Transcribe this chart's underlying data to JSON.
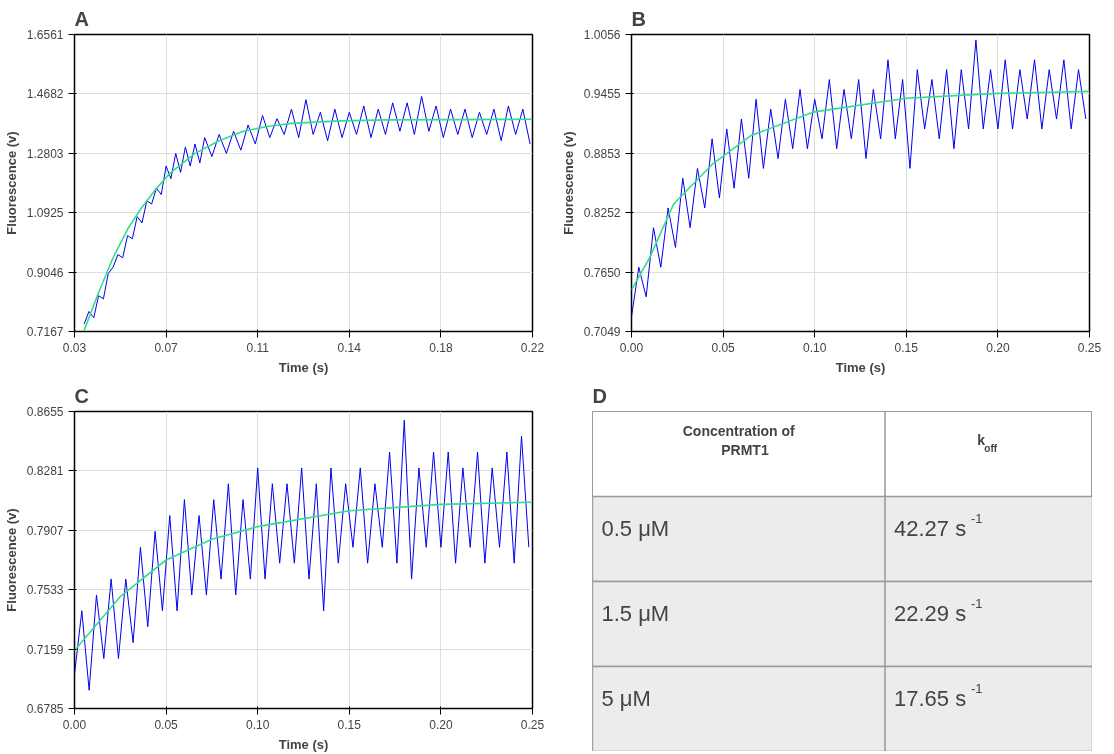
{
  "chart_data": [
    {
      "type": "line",
      "title": "A",
      "xlabel": "Time (s)",
      "ylabel": "Fluorescence (v)",
      "grid": true,
      "xlim": [
        0.03,
        0.22
      ],
      "xticks": [
        0.03,
        {
          "value": 0.068,
          "label": "0.07"
        },
        {
          "value": 0.106,
          "label": "0.11"
        },
        {
          "value": 0.144,
          "label": "0.14"
        },
        {
          "value": 0.182,
          "label": "0.18"
        },
        0.22
      ],
      "ylim": [
        0.7167,
        1.6561
      ],
      "yticks": [
        0.7167,
        0.9046,
        1.0925,
        1.2803,
        1.4682,
        1.6561
      ],
      "series": [
        {
          "color": "#0000ee",
          "x": [
            0.034,
            0.036,
            0.038,
            0.04,
            0.042,
            0.044,
            0.046,
            0.048,
            0.05,
            0.052,
            0.054,
            0.056,
            0.058,
            0.06,
            0.062,
            0.064,
            0.066,
            0.068,
            0.07,
            0.072,
            0.074,
            0.076,
            0.078,
            0.08,
            0.082,
            0.084,
            0.087,
            0.09,
            0.093,
            0.096,
            0.099,
            0.102,
            0.105,
            0.108,
            0.111,
            0.114,
            0.117,
            0.12,
            0.123,
            0.126,
            0.129,
            0.132,
            0.135,
            0.138,
            0.141,
            0.144,
            0.147,
            0.15,
            0.153,
            0.156,
            0.159,
            0.162,
            0.165,
            0.168,
            0.171,
            0.174,
            0.177,
            0.18,
            0.183,
            0.186,
            0.189,
            0.192,
            0.195,
            0.198,
            0.201,
            0.204,
            0.207,
            0.21,
            0.213,
            0.216,
            0.219
          ],
          "values": [
            0.74,
            0.78,
            0.76,
            0.83,
            0.82,
            0.9,
            0.92,
            0.96,
            0.95,
            1.02,
            1.01,
            1.08,
            1.06,
            1.13,
            1.12,
            1.17,
            1.15,
            1.24,
            1.2,
            1.28,
            1.22,
            1.3,
            1.24,
            1.31,
            1.25,
            1.33,
            1.27,
            1.34,
            1.28,
            1.35,
            1.29,
            1.37,
            1.31,
            1.4,
            1.33,
            1.39,
            1.34,
            1.42,
            1.33,
            1.45,
            1.34,
            1.41,
            1.32,
            1.42,
            1.33,
            1.41,
            1.34,
            1.43,
            1.33,
            1.42,
            1.34,
            1.44,
            1.35,
            1.44,
            1.34,
            1.46,
            1.35,
            1.43,
            1.33,
            1.42,
            1.34,
            1.42,
            1.33,
            1.41,
            1.34,
            1.42,
            1.32,
            1.43,
            1.34,
            1.42,
            1.31
          ]
        },
        {
          "color": "#33dd88",
          "x": [
            0.034,
            0.04,
            0.046,
            0.052,
            0.058,
            0.064,
            0.07,
            0.08,
            0.09,
            0.1,
            0.11,
            0.12,
            0.14,
            0.16,
            0.19,
            0.22
          ],
          "values": [
            0.72,
            0.84,
            0.95,
            1.04,
            1.11,
            1.17,
            1.22,
            1.28,
            1.32,
            1.35,
            1.365,
            1.375,
            1.383,
            1.386,
            1.387,
            1.388
          ]
        }
      ]
    },
    {
      "type": "line",
      "title": "B",
      "xlabel": "Time (s)",
      "ylabel": "Fluorescence (v)",
      "grid": true,
      "xlim": [
        0,
        0.25
      ],
      "xticks": [
        {
          "value": 0,
          "label": "0.00"
        },
        0.05,
        {
          "value": 0.1,
          "label": "0.10"
        },
        0.15,
        {
          "value": 0.2,
          "label": "0.20"
        },
        0.25
      ],
      "ylim": [
        0.7049,
        1.0056
      ],
      "yticks": [
        0.7049,
        {
          "value": 0.765,
          "label": "0.7650"
        },
        0.8252,
        0.8853,
        0.9455,
        1.0056
      ],
      "series": [
        {
          "color": "#0000ee",
          "x": [
            0.0,
            0.004,
            0.008,
            0.012,
            0.016,
            0.02,
            0.024,
            0.028,
            0.032,
            0.036,
            0.04,
            0.044,
            0.048,
            0.052,
            0.056,
            0.06,
            0.064,
            0.068,
            0.072,
            0.076,
            0.08,
            0.084,
            0.088,
            0.092,
            0.096,
            0.1,
            0.104,
            0.108,
            0.112,
            0.116,
            0.12,
            0.124,
            0.128,
            0.132,
            0.136,
            0.14,
            0.144,
            0.148,
            0.152,
            0.156,
            0.16,
            0.164,
            0.168,
            0.172,
            0.176,
            0.18,
            0.184,
            0.188,
            0.192,
            0.196,
            0.2,
            0.204,
            0.208,
            0.212,
            0.216,
            0.22,
            0.224,
            0.228,
            0.232,
            0.236,
            0.24,
            0.244,
            0.248
          ],
          "values": [
            0.72,
            0.77,
            0.74,
            0.81,
            0.77,
            0.83,
            0.79,
            0.86,
            0.81,
            0.87,
            0.83,
            0.9,
            0.84,
            0.91,
            0.85,
            0.92,
            0.86,
            0.94,
            0.87,
            0.93,
            0.88,
            0.94,
            0.89,
            0.95,
            0.89,
            0.94,
            0.9,
            0.96,
            0.89,
            0.95,
            0.9,
            0.96,
            0.88,
            0.95,
            0.9,
            0.98,
            0.9,
            0.96,
            0.87,
            0.97,
            0.91,
            0.96,
            0.9,
            0.97,
            0.89,
            0.97,
            0.91,
            1.0,
            0.91,
            0.97,
            0.91,
            0.98,
            0.91,
            0.97,
            0.92,
            0.98,
            0.91,
            0.97,
            0.92,
            0.98,
            0.91,
            0.97,
            0.92
          ]
        },
        {
          "color": "#33dd88",
          "x": [
            0.0,
            0.01,
            0.023,
            0.044,
            0.065,
            0.099,
            0.15,
            0.2,
            0.25
          ],
          "values": [
            0.747,
            0.78,
            0.834,
            0.874,
            0.903,
            0.927,
            0.941,
            0.946,
            0.948
          ]
        }
      ]
    },
    {
      "type": "line",
      "title": "C",
      "xlabel": "Time (s)",
      "ylabel": "Fluorescence (v)",
      "grid": true,
      "xlim": [
        0,
        0.25
      ],
      "xticks": [
        {
          "value": 0,
          "label": "0.00"
        },
        0.05,
        {
          "value": 0.1,
          "label": "0.10"
        },
        0.15,
        {
          "value": 0.2,
          "label": "0.20"
        },
        0.25
      ],
      "ylim": [
        0.6785,
        0.8655
      ],
      "yticks": [
        0.6785,
        0.7159,
        0.7533,
        0.7907,
        0.8281,
        0.8655
      ],
      "series": [
        {
          "color": "#0000ee",
          "x": [
            0.0,
            0.004,
            0.008,
            0.012,
            0.016,
            0.02,
            0.024,
            0.028,
            0.032,
            0.036,
            0.04,
            0.044,
            0.048,
            0.052,
            0.056,
            0.06,
            0.064,
            0.068,
            0.072,
            0.076,
            0.08,
            0.084,
            0.088,
            0.092,
            0.096,
            0.1,
            0.104,
            0.108,
            0.112,
            0.116,
            0.12,
            0.124,
            0.128,
            0.132,
            0.136,
            0.14,
            0.144,
            0.148,
            0.152,
            0.156,
            0.16,
            0.164,
            0.168,
            0.172,
            0.176,
            0.18,
            0.184,
            0.188,
            0.192,
            0.196,
            0.2,
            0.204,
            0.208,
            0.212,
            0.216,
            0.22,
            0.224,
            0.228,
            0.232,
            0.236,
            0.24,
            0.244,
            0.248
          ],
          "values": [
            0.7,
            0.74,
            0.69,
            0.75,
            0.71,
            0.76,
            0.71,
            0.76,
            0.72,
            0.78,
            0.73,
            0.79,
            0.74,
            0.8,
            0.74,
            0.81,
            0.75,
            0.8,
            0.75,
            0.81,
            0.76,
            0.82,
            0.75,
            0.81,
            0.76,
            0.83,
            0.76,
            0.82,
            0.77,
            0.82,
            0.77,
            0.83,
            0.76,
            0.82,
            0.74,
            0.83,
            0.77,
            0.82,
            0.78,
            0.83,
            0.77,
            0.82,
            0.78,
            0.84,
            0.77,
            0.86,
            0.76,
            0.83,
            0.78,
            0.84,
            0.78,
            0.84,
            0.77,
            0.83,
            0.78,
            0.84,
            0.77,
            0.83,
            0.78,
            0.84,
            0.77,
            0.85,
            0.78
          ]
        },
        {
          "color": "#33dd88",
          "x": [
            0.0,
            0.025,
            0.05,
            0.075,
            0.1,
            0.15,
            0.2,
            0.25
          ],
          "values": [
            0.715,
            0.749,
            0.772,
            0.785,
            0.793,
            0.803,
            0.807,
            0.8084
          ]
        }
      ]
    },
    {
      "type": "other",
      "title": "D",
      "annotations": [
        "Concentration of PRMT1",
        "k$_{off}$",
        "0.5 μM",
        "42.27 s$^{-1}$",
        "1.5 μM",
        "22.29 s$^{-1}$",
        "5 μM",
        "17.65 s$^{-1}$"
      ]
    }
  ]
}
